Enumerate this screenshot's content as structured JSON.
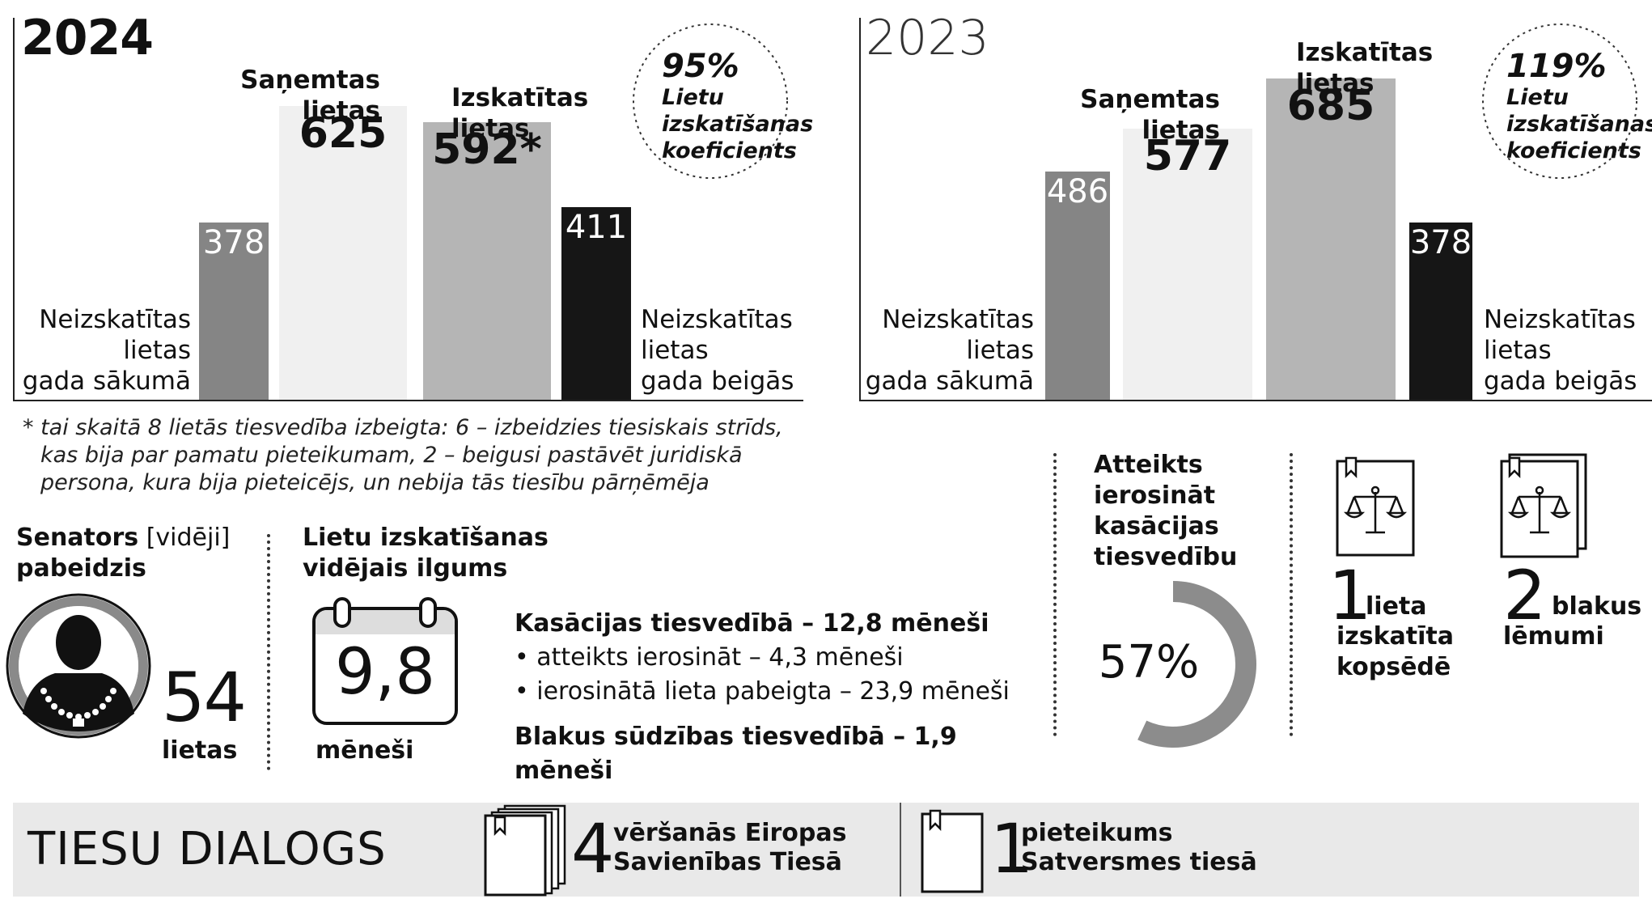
{
  "chart_data": [
    {
      "type": "bar",
      "year_label": "2024",
      "categories": [
        "Neizskatītas lietas gada sākumā",
        "Saņemtas lietas",
        "Izskatītas lietas",
        "Neizskatītas lietas gada beigās"
      ],
      "values": [
        378,
        625,
        592,
        411
      ],
      "value_labels": [
        "378",
        "625",
        "592*",
        "411"
      ],
      "colors": [
        "#858585",
        "#f0f0f0",
        "#b5b5b5",
        "#161616"
      ],
      "ylim": [
        0,
        720
      ]
    },
    {
      "type": "bar",
      "year_label": "2023",
      "categories": [
        "Neizskatītas lietas gada sākumā",
        "Saņemtas lietas",
        "Izskatītas lietas",
        "Neizskatītas lietas gada beigās"
      ],
      "values": [
        486,
        577,
        685,
        378
      ],
      "value_labels": [
        "486",
        "577",
        "685",
        "378"
      ],
      "colors": [
        "#858585",
        "#f0f0f0",
        "#b5b5b5",
        "#161616"
      ],
      "ylim": [
        0,
        720
      ]
    },
    {
      "type": "pie",
      "categories": [
        "Atteikts ierosināt kasācijas tiesvedību"
      ],
      "values": [
        57
      ],
      "label": "57%"
    }
  ],
  "y2024": {
    "year": "2024",
    "start_l1": "Neizskatītas",
    "start_l2": "lietas",
    "start_l3": "gada sākumā",
    "recv_l1": "Saņemtas",
    "recv_l2": "lietas",
    "rev_l1": "Izskatītas",
    "rev_l2": "lietas",
    "end_l1": "Neizskatītas",
    "end_l2": "lietas",
    "end_l3": "gada beigās",
    "coef_pct": "95%",
    "coef_l1": "Lietu",
    "coef_l2": "izskatīšanas",
    "coef_l3": "koeficients"
  },
  "y2023": {
    "year": "2023",
    "start_l1": "Neizskatītas",
    "start_l2": "lietas",
    "start_l3": "gada sākumā",
    "recv_l1": "Saņemtas",
    "recv_l2": "lietas",
    "rev_l1": "Izskatītas",
    "rev_l2": "lietas",
    "end_l1": "Neizskatītas",
    "end_l2": "lietas",
    "end_l3": "gada beigās",
    "coef_pct": "119%",
    "coef_l1": "Lietu",
    "coef_l2": "izskatīšanas",
    "coef_l3": "koeficients"
  },
  "footnote": {
    "l1": "* tai skaitā 8 lietās tiesvedība izbeigta: 6 – izbeidzies tiesiskais strīds,",
    "l2": "kas bija par pamatu pieteikumam, 2 – beigusi pastāvēt juridiskā",
    "l3": "persona, kura bija pieteicējs, un nebija tās tiesību pārņēmēja"
  },
  "senator": {
    "title_b": "Senators",
    "title_n": "[vidēji]",
    "title_l2": "pabeidzis",
    "value": "54",
    "unit": "lietas"
  },
  "duration": {
    "title_l1": "Lietu izskatīšanas",
    "title_l2": "vidējais ilgums",
    "value": "9,8",
    "unit": "mēneši",
    "cass": "Kasācijas tiesvedībā – 12,8 mēneši",
    "b1": "• atteikts ierosināt – 4,3 mēneši",
    "b2": "• ierosinātā lieta pabeigta – 23,9 mēneši",
    "side": "Blakus sūdzības tiesvedībā – 1,9 mēneši"
  },
  "refused": {
    "l1": "Atteikts",
    "l2": "ierosināt",
    "l3": "kasācijas",
    "l4": "tiesvedību",
    "pct": "57%"
  },
  "plenary": {
    "num": "1",
    "l1": "lieta",
    "l2": "izskatīta",
    "l3": "kopsēdē"
  },
  "side_dec": {
    "num": "2",
    "l1": "blakus",
    "l2": "lēmumi"
  },
  "dialog": {
    "title": "TIESU DIALOGS",
    "eu_num": "4",
    "eu_l1": "vēršanās Eiropas",
    "eu_l2": "Savienības Tiesā",
    "sat_num": "1",
    "sat_l1": "pieteikums",
    "sat_l2": "Satversmes tiesā"
  }
}
